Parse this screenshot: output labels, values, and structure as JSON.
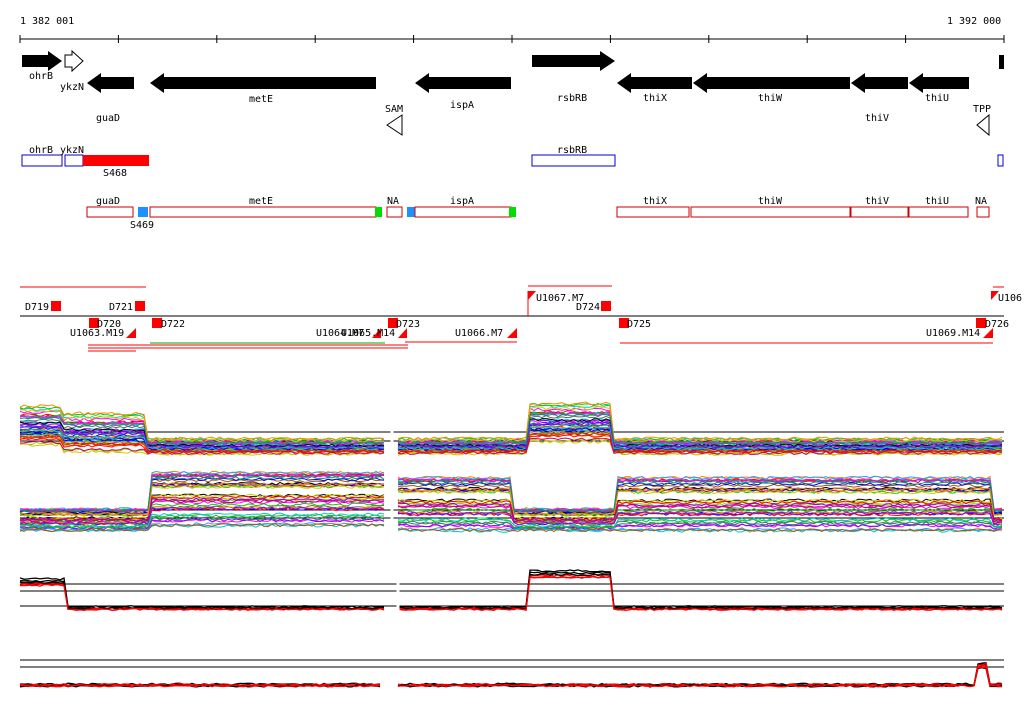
{
  "ruler": {
    "start_label": "1 382 001",
    "end_label": "1 392 000"
  },
  "genes_top": [
    {
      "label": "ohrB",
      "strand": "+",
      "filled": true
    },
    {
      "label": "ykzN",
      "strand": "+",
      "filled": false
    },
    {
      "label": "guaD",
      "strand": "-",
      "filled": true
    },
    {
      "label": "metE",
      "strand": "-",
      "filled": true
    },
    {
      "label": "SAM",
      "strand": "-",
      "filled": false
    },
    {
      "label": "ispA",
      "strand": "-",
      "filled": true
    },
    {
      "label": "rsbRB",
      "strand": "+",
      "filled": true
    },
    {
      "label": "thiX",
      "strand": "-",
      "filled": true
    },
    {
      "label": "thiW",
      "strand": "-",
      "filled": true
    },
    {
      "label": "thiV",
      "strand": "-",
      "filled": true
    },
    {
      "label": "thiU",
      "strand": "-",
      "filled": true
    },
    {
      "label": "TPP",
      "strand": "-",
      "filled": false
    }
  ],
  "plus_boxes": [
    {
      "label": "ohrB"
    },
    {
      "label": "ykzN"
    },
    {
      "label": "S468"
    },
    {
      "label": "rsbRB"
    }
  ],
  "minus_boxes": [
    {
      "label": "guaD"
    },
    {
      "label": "S469"
    },
    {
      "label": "metE"
    },
    {
      "label": "NA"
    },
    {
      "label": "ispA"
    },
    {
      "label": "thiX"
    },
    {
      "label": "thiW"
    },
    {
      "label": "thiV"
    },
    {
      "label": "thiU"
    },
    {
      "label": "NA"
    }
  ],
  "segment_labels": [
    "D719",
    "D721",
    "U1067.M7",
    "D724",
    "U106",
    "D720",
    "U1063.M19",
    "D722",
    "U1064.M7",
    "U1065.M14",
    "D723",
    "U1066.M7",
    "D725",
    "U1069.M14",
    "D726"
  ],
  "colors": {
    "gene_fill": "#000000",
    "plus_box": "#0000cc",
    "minus_box": "#cc0000",
    "highlight_red": "#ff0000",
    "highlight_blue": "#1e90ff",
    "highlight_green": "#00dd00",
    "segment_red": "#ff0000",
    "line_green": "#00aa00"
  }
}
